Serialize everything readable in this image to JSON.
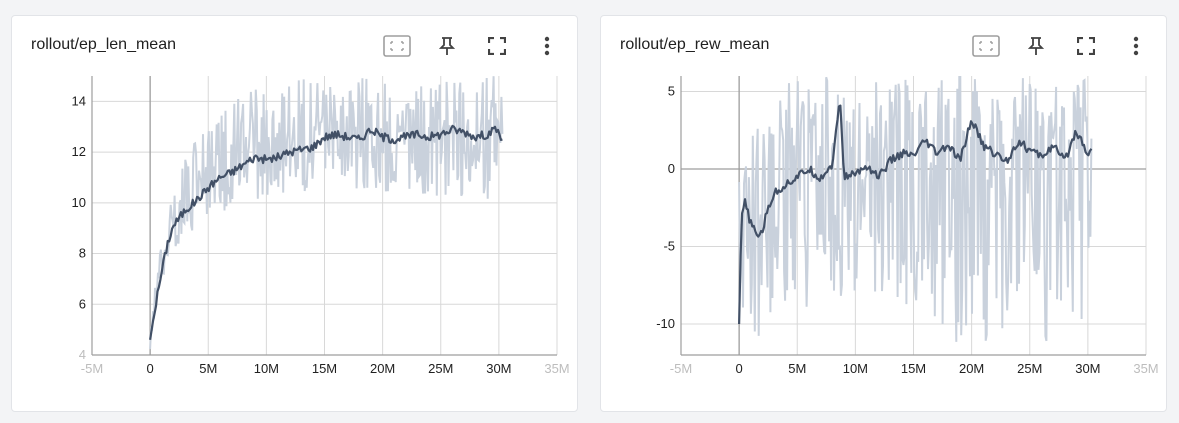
{
  "cards": [
    {
      "title": "rollout/ep_len_mean",
      "toolbar": [
        "fit-domain-icon",
        "pin-icon",
        "fullscreen-icon",
        "more-vert-icon"
      ]
    },
    {
      "title": "rollout/ep_rew_mean",
      "toolbar": [
        "fit-domain-icon",
        "pin-icon",
        "fullscreen-icon",
        "more-vert-icon"
      ]
    }
  ],
  "colors": {
    "smoothed": "#425066",
    "raw": "#c9d1dc",
    "grid": "#d8d8d8",
    "axis": "#9e9e9e",
    "tick": "#212121",
    "tick_faded": "#bdbdbd"
  },
  "chart_data": [
    {
      "type": "line",
      "title": "rollout/ep_len_mean",
      "x_ticks": [
        "-5M",
        "0",
        "5M",
        "10M",
        "15M",
        "20M",
        "25M",
        "30M",
        "35M"
      ],
      "y_ticks": [
        "4",
        "6",
        "8",
        "10",
        "12",
        "14"
      ],
      "xlim": [
        -5000000,
        35000000
      ],
      "ylim": [
        4,
        15
      ],
      "grid": true,
      "series": [
        {
          "role": "smoothed",
          "x": [
            0,
            300000,
            600000,
            1000000,
            1500000,
            2000000,
            2500000,
            3000000,
            4000000,
            5000000,
            6000000,
            7000000,
            8000000,
            9000000,
            10000000,
            11000000,
            12000000,
            13000000,
            14000000,
            15000000,
            16000000,
            17000000,
            18000000,
            19000000,
            20000000,
            21000000,
            22000000,
            23000000,
            24000000,
            25000000,
            26000000,
            27000000,
            28000000,
            29000000,
            29800000,
            30300000
          ],
          "y": [
            4.6,
            5.5,
            6.3,
            7.3,
            8.4,
            9.1,
            9.4,
            9.7,
            10.1,
            10.6,
            11.0,
            11.2,
            11.5,
            11.8,
            11.7,
            11.8,
            12.0,
            12.1,
            12.2,
            12.6,
            12.7,
            12.6,
            12.5,
            12.9,
            12.6,
            12.5,
            12.6,
            12.7,
            12.6,
            12.7,
            12.9,
            12.8,
            12.6,
            12.7,
            12.9,
            12.5
          ]
        },
        {
          "role": "raw",
          "x": [
            0,
            300000,
            600000,
            1000000,
            1500000,
            2000000,
            2500000,
            3000000,
            4000000,
            5000000,
            6000000,
            7000000,
            8000000,
            9000000,
            10000000,
            11000000,
            12000000,
            13000000,
            14000000,
            15000000,
            16000000,
            17000000,
            18000000,
            19000000,
            20000000,
            21000000,
            22000000,
            23000000,
            24000000,
            25000000,
            26000000,
            27000000,
            28000000,
            29000000,
            29800000,
            30300000
          ],
          "y_min": [
            4.2,
            4.8,
            5.6,
            6.5,
            7.6,
            8.1,
            8.4,
            8.5,
            8.8,
            9.2,
            9.4,
            9.6,
            10.0,
            10.1,
            10.2,
            10.1,
            10.3,
            10.4,
            10.3,
            10.6,
            10.6,
            10.5,
            10.4,
            10.6,
            10.4,
            10.2,
            10.3,
            10.4,
            10.1,
            10.2,
            10.2,
            10.0,
            10.0,
            10.1,
            10.0,
            11.5
          ],
          "y_max": [
            5.0,
            6.3,
            7.3,
            8.6,
            9.8,
            10.6,
            11.2,
            11.8,
            12.5,
            13.1,
            13.6,
            14.0,
            14.3,
            14.5,
            14.6,
            14.6,
            14.8,
            15.0,
            15.0,
            15.0,
            15.0,
            15.0,
            15.0,
            15.0,
            15.0,
            15.0,
            15.0,
            15.0,
            15.0,
            15.0,
            15.0,
            15.0,
            15.0,
            15.0,
            15.0,
            14.2
          ]
        }
      ]
    },
    {
      "type": "line",
      "title": "rollout/ep_rew_mean",
      "x_ticks": [
        "-5M",
        "0",
        "5M",
        "10M",
        "15M",
        "20M",
        "25M",
        "30M",
        "35M"
      ],
      "y_ticks": [
        "-10",
        "-5",
        "0",
        "5"
      ],
      "xlim": [
        -5000000,
        35000000
      ],
      "ylim": [
        -12,
        6
      ],
      "grid": true,
      "series": [
        {
          "role": "smoothed",
          "x": [
            0,
            200000,
            500000,
            1000000,
            1500000,
            2000000,
            2500000,
            3000000,
            4000000,
            5000000,
            6000000,
            7000000,
            8000000,
            8700000,
            9000000,
            10000000,
            11000000,
            12000000,
            13000000,
            14000000,
            15000000,
            16000000,
            17000000,
            18000000,
            19000000,
            20000000,
            21000000,
            22000000,
            23000000,
            24000000,
            25000000,
            26000000,
            27000000,
            28000000,
            29000000,
            30000000,
            30300000
          ],
          "y": [
            -10.0,
            -3.0,
            -2.2,
            -3.5,
            -4.3,
            -4.0,
            -2.5,
            -1.6,
            -1.0,
            -0.5,
            0.0,
            -0.6,
            0.3,
            4.5,
            -0.5,
            -0.3,
            0.2,
            -0.5,
            0.5,
            1.0,
            0.8,
            1.8,
            1.0,
            1.5,
            0.5,
            3.2,
            1.5,
            1.0,
            0.5,
            1.8,
            1.2,
            0.8,
            1.5,
            0.5,
            2.5,
            1.0,
            1.3
          ]
        },
        {
          "role": "raw",
          "x": [
            0,
            200000,
            500000,
            1000000,
            1500000,
            2000000,
            2500000,
            3000000,
            4000000,
            5000000,
            6000000,
            7000000,
            8000000,
            8700000,
            9000000,
            10000000,
            11000000,
            12000000,
            13000000,
            14000000,
            15000000,
            16000000,
            17000000,
            18000000,
            19000000,
            20000000,
            21000000,
            22000000,
            23000000,
            24000000,
            25000000,
            26000000,
            27000000,
            28000000,
            29000000,
            30000000,
            30300000
          ],
          "y_min": [
            -12.0,
            -12.0,
            -12.0,
            -12.0,
            -12.0,
            -12.0,
            -11.0,
            -10.5,
            -10.0,
            -10.5,
            -10.0,
            -11.0,
            -9.5,
            -9.0,
            -12.0,
            -10.0,
            -11.0,
            -12.0,
            -9.0,
            -10.5,
            -11.0,
            -12.0,
            -10.0,
            -11.0,
            -12.0,
            -10.0,
            -11.5,
            -12.0,
            -10.0,
            -11.0,
            -12.0,
            -10.5,
            -12.0,
            -11.0,
            -12.0,
            -9.0,
            -3.0
          ],
          "y_max": [
            1.0,
            1.5,
            1.0,
            2.0,
            3.0,
            3.5,
            4.0,
            5.0,
            6.0,
            6.0,
            6.0,
            6.0,
            6.0,
            6.0,
            6.0,
            6.0,
            6.0,
            6.0,
            6.0,
            6.0,
            6.0,
            6.0,
            6.0,
            6.0,
            6.0,
            6.0,
            6.0,
            6.0,
            6.0,
            6.0,
            6.0,
            6.0,
            6.0,
            6.0,
            6.0,
            6.0,
            3.5
          ]
        }
      ]
    }
  ]
}
